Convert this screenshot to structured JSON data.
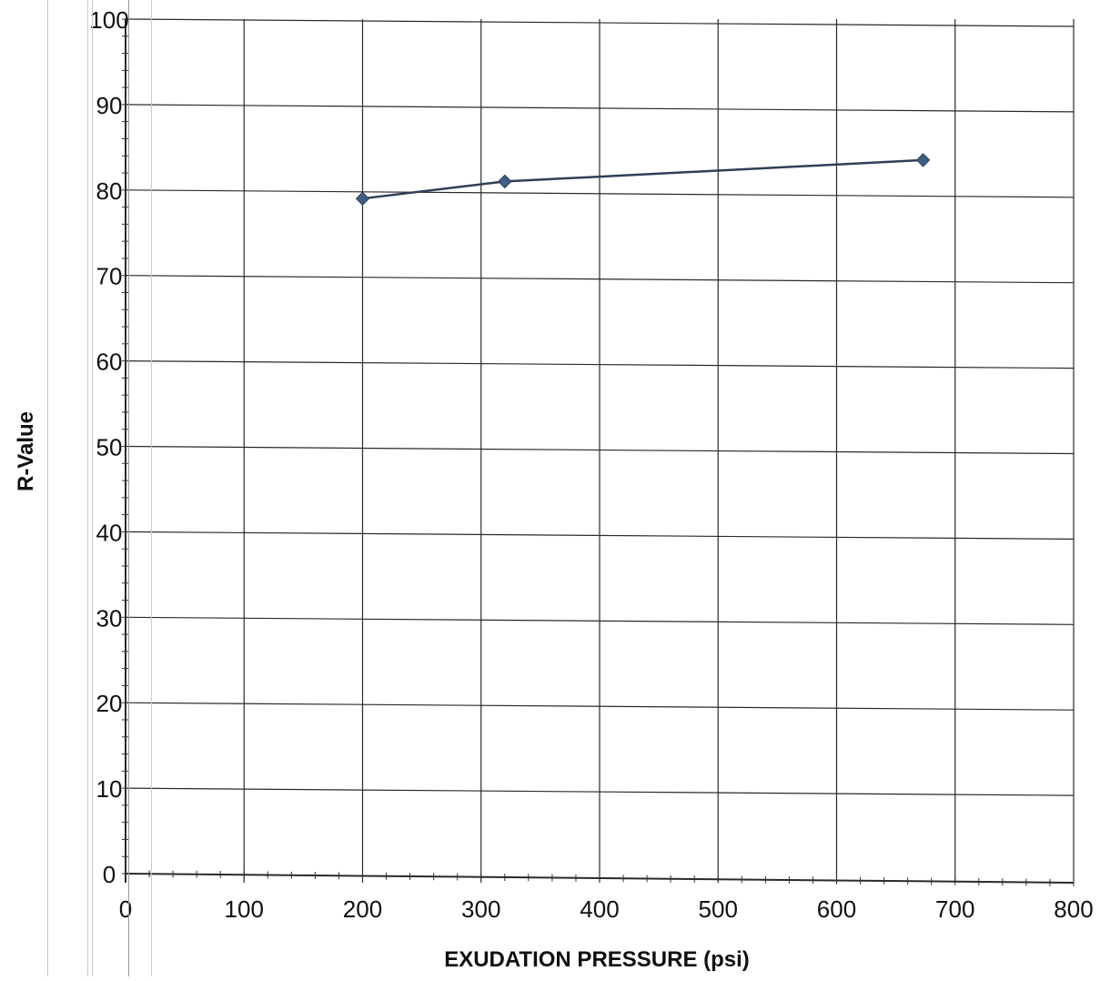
{
  "chart_data": {
    "type": "line",
    "title": "",
    "xlabel": "EXUDATION PRESSURE (psi)",
    "ylabel": "R-Value",
    "xlim": [
      0,
      800
    ],
    "ylim": [
      0,
      100
    ],
    "x_ticks": [
      "0",
      "100",
      "200",
      "300",
      "400",
      "500",
      "600",
      "700",
      "800"
    ],
    "y_ticks": [
      "0",
      "10",
      "20",
      "30",
      "40",
      "50",
      "60",
      "70",
      "80",
      "90",
      "100"
    ],
    "grid": true,
    "legend": "none",
    "series": [
      {
        "x": [
          200,
          320,
          673
        ],
        "y": [
          79,
          81,
          83.5
        ],
        "color": "#3f5f86",
        "marker": "diamond"
      }
    ]
  }
}
